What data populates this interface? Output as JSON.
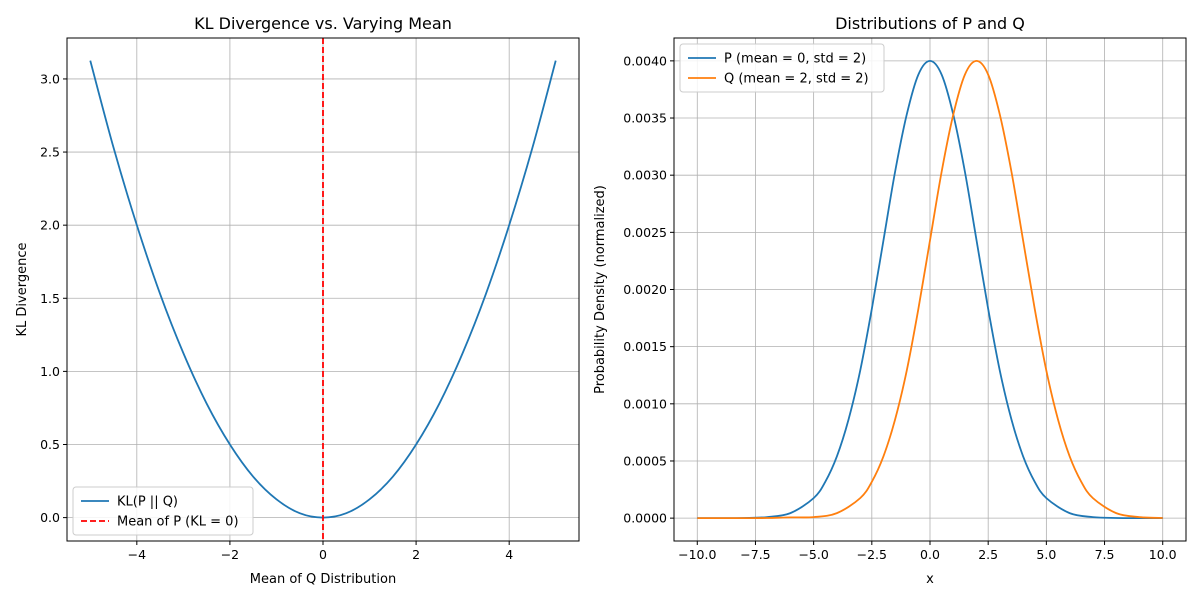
{
  "chart_data": [
    {
      "type": "line",
      "title": "KL Divergence vs. Varying Mean",
      "xlabel": "Mean of Q Distribution",
      "ylabel": "KL Divergence",
      "xlim": [
        -5.5,
        5.5
      ],
      "ylim": [
        -0.16,
        3.28
      ],
      "xticks": [
        -4,
        -2,
        0,
        2,
        4
      ],
      "xtick_labels": [
        "−4",
        "−2",
        "0",
        "2",
        "4"
      ],
      "yticks": [
        0.0,
        0.5,
        1.0,
        1.5,
        2.0,
        2.5,
        3.0
      ],
      "ytick_labels": [
        "0.0",
        "0.5",
        "1.0",
        "1.5",
        "2.0",
        "2.5",
        "3.0"
      ],
      "grid": true,
      "legend_position": "lower-left",
      "series": [
        {
          "name": "KL(P || Q)",
          "color": "#1f77b4",
          "style": "solid",
          "x": [
            -5,
            -4.5,
            -4,
            -3.5,
            -3,
            -2.5,
            -2,
            -1.5,
            -1,
            -0.5,
            0,
            0.5,
            1,
            1.5,
            2,
            2.5,
            3,
            3.5,
            4,
            4.5,
            5
          ],
          "y": [
            3.125,
            2.53,
            2.0,
            1.53,
            1.125,
            0.78,
            0.5,
            0.28,
            0.125,
            0.03,
            0.0,
            0.03,
            0.125,
            0.28,
            0.5,
            0.78,
            1.125,
            1.53,
            2.0,
            2.53,
            3.125
          ]
        },
        {
          "name": "Mean of P (KL = 0)",
          "color": "#ff0000",
          "style": "dashed",
          "vertical_line_x": 0
        }
      ]
    },
    {
      "type": "line",
      "title": "Distributions of P and Q",
      "xlabel": "x",
      "ylabel": "Probability Density (normalized)",
      "xlim": [
        -11,
        11
      ],
      "ylim": [
        -0.0002,
        0.0042
      ],
      "xticks": [
        -10,
        -7.5,
        -5,
        -2.5,
        0,
        2.5,
        5,
        7.5,
        10
      ],
      "xtick_labels": [
        "−10.0",
        "−7.5",
        "−5.0",
        "−2.5",
        "0.0",
        "2.5",
        "5.0",
        "7.5",
        "10.0"
      ],
      "yticks": [
        0,
        0.0005,
        0.001,
        0.0015,
        0.002,
        0.0025,
        0.003,
        0.0035,
        0.004
      ],
      "ytick_labels": [
        "0.0000",
        "0.0005",
        "0.0010",
        "0.0015",
        "0.0020",
        "0.0025",
        "0.0030",
        "0.0035",
        "0.0040"
      ],
      "grid": true,
      "legend_position": "top-left",
      "series": [
        {
          "name": "P (mean = 0, std = 2)",
          "color": "#1f77b4",
          "style": "solid",
          "x": [
            -10,
            -9,
            -8,
            -7,
            -6,
            -5,
            -4.5,
            -4,
            -3.5,
            -3,
            -2.5,
            -2,
            -1.5,
            -1,
            -0.5,
            0,
            0.5,
            1,
            1.5,
            2,
            2.5,
            3,
            3.5,
            4,
            4.5,
            5,
            6,
            7,
            8,
            9,
            10
          ],
          "y": [
            0.0,
            0.0,
            1.3e-06,
            8.8e-06,
            4.4e-05,
            0.000175,
            0.000318,
            0.000541,
            0.000863,
            0.00129,
            0.00183,
            0.00243,
            0.00303,
            0.00353,
            0.00388,
            0.004,
            0.00388,
            0.00353,
            0.00303,
            0.00243,
            0.00183,
            0.00129,
            0.000863,
            0.000541,
            0.000318,
            0.000175,
            4.4e-05,
            8.8e-06,
            1.3e-06,
            0.0,
            0.0
          ]
        },
        {
          "name": "Q (mean = 2, std = 2)",
          "color": "#ff7f0e",
          "style": "solid",
          "x": [
            -10,
            -8,
            -7,
            -6,
            -5,
            -4,
            -3,
            -2.5,
            -2,
            -1.5,
            -1,
            -0.5,
            0,
            0.5,
            1,
            1.5,
            2,
            2.5,
            3,
            3.5,
            4,
            4.5,
            5,
            5.5,
            6,
            6.5,
            7,
            8,
            9,
            10
          ],
          "y": [
            0.0,
            0.0,
            1e-06,
            6.7e-06,
            9e-06,
            4.4e-05,
            0.000175,
            0.000318,
            0.000541,
            0.000863,
            0.00129,
            0.00183,
            0.00243,
            0.00303,
            0.00353,
            0.00388,
            0.004,
            0.00388,
            0.00353,
            0.00303,
            0.00243,
            0.00183,
            0.00129,
            0.000863,
            0.000541,
            0.000318,
            0.000175,
            4.4e-05,
            8.8e-06,
            1.3e-06
          ]
        }
      ]
    }
  ]
}
